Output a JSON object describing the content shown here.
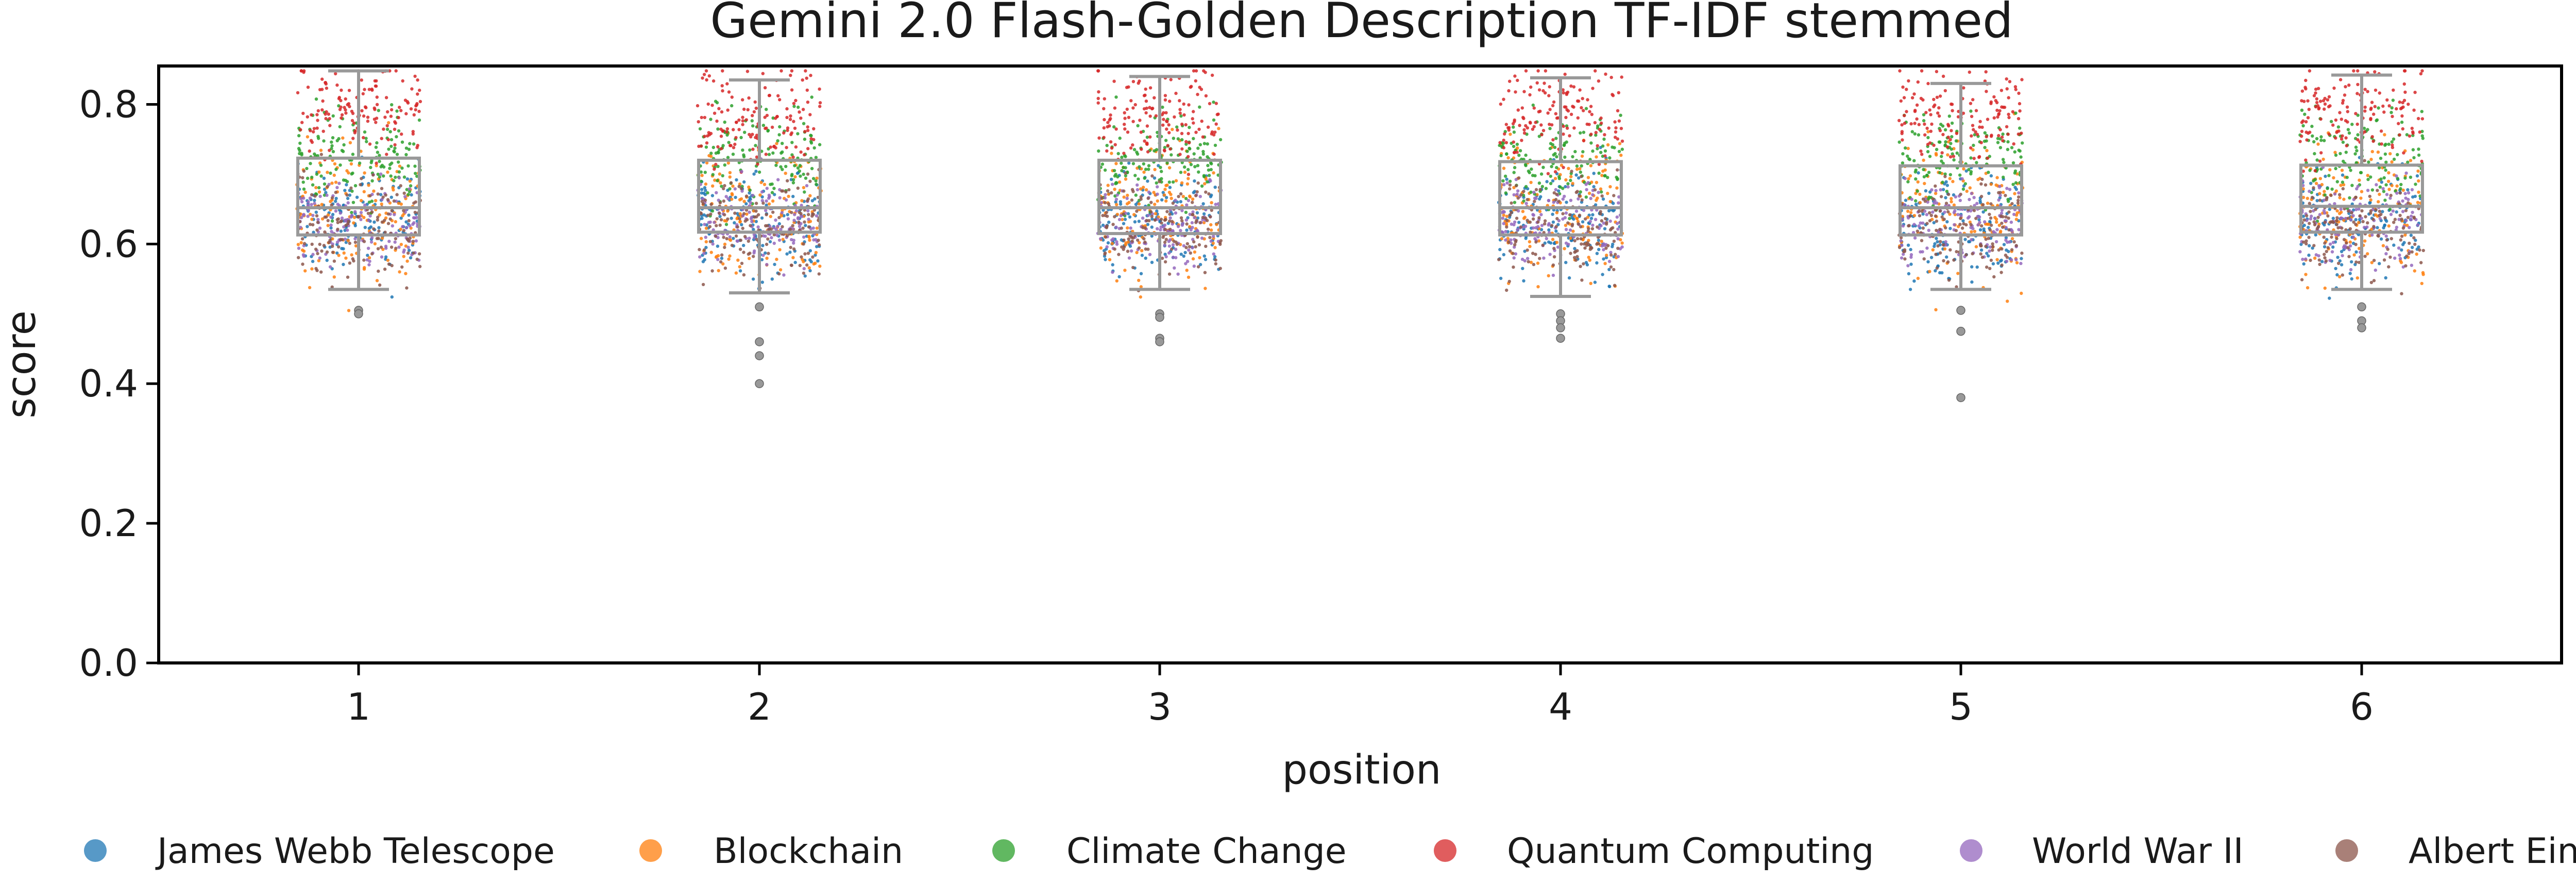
{
  "chart_data": {
    "type": "box-strip",
    "title": "Gemini 2.0 Flash-Golden Description TF-IDF stemmed",
    "xlabel": "position",
    "ylabel": "score",
    "ylim": [
      0.0,
      0.855
    ],
    "yticks": [
      "0.0",
      "0.2",
      "0.4",
      "0.6",
      "0.8"
    ],
    "ytick_values": [
      0.0,
      0.2,
      0.4,
      0.6,
      0.8
    ],
    "categories": [
      "1",
      "2",
      "3",
      "4",
      "5",
      "6"
    ],
    "grid": false,
    "legend_position": "bottom",
    "box_color": "#999999",
    "boxes": [
      {
        "position": "1",
        "whisker_low": 0.535,
        "q1": 0.613,
        "median": 0.652,
        "q3": 0.723,
        "whisker_high": 0.848,
        "outliers": [
          0.505,
          0.5
        ]
      },
      {
        "position": "2",
        "whisker_low": 0.53,
        "q1": 0.617,
        "median": 0.652,
        "q3": 0.72,
        "whisker_high": 0.835,
        "outliers": [
          0.51,
          0.46,
          0.44,
          0.4
        ]
      },
      {
        "position": "3",
        "whisker_low": 0.535,
        "q1": 0.615,
        "median": 0.652,
        "q3": 0.72,
        "whisker_high": 0.84,
        "outliers": [
          0.5,
          0.495,
          0.465,
          0.46
        ]
      },
      {
        "position": "4",
        "whisker_low": 0.525,
        "q1": 0.613,
        "median": 0.652,
        "q3": 0.718,
        "whisker_high": 0.838,
        "outliers": [
          0.5,
          0.49,
          0.48,
          0.465
        ]
      },
      {
        "position": "5",
        "whisker_low": 0.535,
        "q1": 0.613,
        "median": 0.652,
        "q3": 0.712,
        "whisker_high": 0.83,
        "outliers": [
          0.505,
          0.475,
          0.38
        ]
      },
      {
        "position": "6",
        "whisker_low": 0.535,
        "q1": 0.617,
        "median": 0.654,
        "q3": 0.713,
        "whisker_high": 0.842,
        "outliers": [
          0.51,
          0.49,
          0.48
        ]
      }
    ],
    "series": [
      {
        "name": "James Webb Telescope",
        "color": "#1f77b4",
        "center": 0.63,
        "spread": 0.04
      },
      {
        "name": "Blockchain",
        "color": "#ff7f0e",
        "center": 0.65,
        "spread": 0.05
      },
      {
        "name": "Climate Change",
        "color": "#2ca02c",
        "center": 0.725,
        "spread": 0.035
      },
      {
        "name": "Quantum Computing",
        "color": "#d62728",
        "center": 0.785,
        "spread": 0.035
      },
      {
        "name": "World War II",
        "color": "#9467bd",
        "center": 0.63,
        "spread": 0.03
      },
      {
        "name": "Albert Einstein",
        "color": "#8c564b",
        "center": 0.625,
        "spread": 0.035
      }
    ]
  }
}
